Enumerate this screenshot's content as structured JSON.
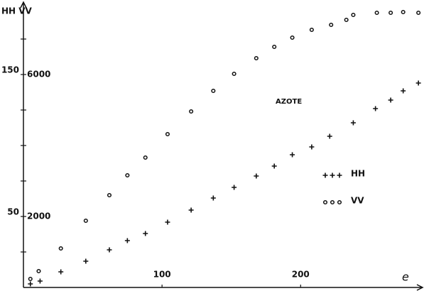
{
  "chart_data": {
    "type": "scatter",
    "annotation": "AZOTE",
    "y_label": "HH VV",
    "x_label": "e",
    "xlim": [
      0,
      288
    ],
    "xticks": [
      100,
      200
    ],
    "ylim": [
      0,
      200
    ],
    "yticks": [
      50,
      150
    ],
    "y_minor_ticks": [
      25,
      75,
      100,
      125,
      175
    ],
    "y2lim": [
      0,
      8000
    ],
    "y2ticks": [
      2000,
      6000
    ],
    "series": [
      {
        "name": "HH",
        "marker": "+",
        "color": "#111111",
        "x": [
          5,
          12,
          27,
          45,
          62,
          75,
          88,
          104,
          121,
          137,
          152,
          168,
          181,
          194,
          208,
          221,
          238,
          254,
          265,
          274,
          285
        ],
        "values": [
          2.5,
          4.5,
          11,
          18.5,
          26.5,
          33,
          38,
          46,
          54.5,
          63,
          70.5,
          78.5,
          85.5,
          93.5,
          99,
          106.5,
          116,
          126,
          132,
          138.5,
          144
        ]
      },
      {
        "name": "VV",
        "marker": "o",
        "color": "#111111",
        "axis": "y2",
        "x": [
          5,
          11,
          27,
          45,
          62,
          75,
          88,
          104,
          121,
          137,
          152,
          168,
          181,
          194,
          208,
          222,
          233,
          238,
          255,
          265,
          274,
          285
        ],
        "values": [
          240,
          460,
          1100,
          1880,
          2600,
          3160,
          3660,
          4320,
          4960,
          5540,
          6020,
          6460,
          6780,
          7040,
          7260,
          7400,
          7540,
          7680,
          7740,
          7740,
          7760,
          7740
        ]
      }
    ]
  }
}
